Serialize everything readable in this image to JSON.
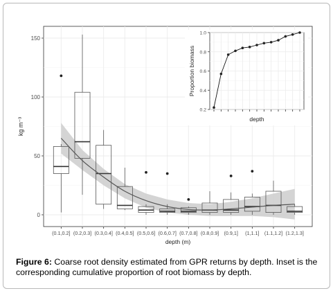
{
  "chart_data": [
    {
      "type": "box",
      "xlabel": "depth (m)",
      "ylabel": "kg m⁻³",
      "ylim": [
        -10,
        160
      ],
      "yticks": [
        0,
        50,
        100,
        150
      ],
      "grid": true,
      "categories": [
        "(0.1,0.2]",
        "(0.2,0.3]",
        "(0.3,0.4]",
        "(0.4,0.5]",
        "(0.5,0.6]",
        "(0.6,0.7]",
        "(0.7,0.8]",
        "(0.8,0.9]",
        "(0.9,1]",
        "(1,1.1]",
        "(1.1,1.2]",
        "(1.2,1.3]"
      ],
      "boxes": [
        {
          "min": 2,
          "q1": 35,
          "median": 41,
          "q3": 58,
          "max": 60,
          "outliers": [
            118
          ]
        },
        {
          "min": 17,
          "q1": 48,
          "median": 62,
          "q3": 104,
          "max": 153,
          "outliers": []
        },
        {
          "min": 5,
          "q1": 9,
          "median": 35,
          "q3": 59,
          "max": 72,
          "outliers": []
        },
        {
          "min": 4,
          "q1": 5,
          "median": 8,
          "q3": 24,
          "max": 40,
          "outliers": []
        },
        {
          "min": 0,
          "q1": 2,
          "median": 4,
          "q3": 7,
          "max": 9,
          "outliers": [
            36
          ]
        },
        {
          "min": 0,
          "q1": 2,
          "median": 3,
          "q3": 5,
          "max": 9,
          "outliers": [
            35
          ]
        },
        {
          "min": 0,
          "q1": 2,
          "median": 3,
          "q3": 6,
          "max": 7,
          "outliers": [
            13
          ]
        },
        {
          "min": 0,
          "q1": 2,
          "median": 4,
          "q3": 10,
          "max": 20,
          "outliers": []
        },
        {
          "min": 0,
          "q1": 2,
          "median": 4,
          "q3": 13,
          "max": 19,
          "outliers": [
            33
          ]
        },
        {
          "min": 0,
          "q1": 3,
          "median": 7,
          "q3": 15,
          "max": 18,
          "outliers": [
            37
          ]
        },
        {
          "min": 0,
          "q1": 2,
          "median": 8,
          "q3": 20,
          "max": 29,
          "outliers": []
        },
        {
          "min": 0,
          "q1": 2,
          "median": 3,
          "q3": 7,
          "max": 9,
          "outliers": []
        }
      ],
      "fit": {
        "x": [
          1,
          2,
          3,
          4,
          5,
          6,
          7,
          8,
          9,
          10,
          11,
          12
        ],
        "y": [
          65,
          46,
          32,
          20,
          12,
          7,
          4.5,
          4,
          5,
          6.5,
          8,
          9
        ],
        "lower": [
          52,
          38,
          25,
          14,
          6,
          2,
          0,
          -1,
          -1,
          -1,
          -2,
          -4
        ],
        "upper": [
          78,
          55,
          39,
          26,
          18,
          13,
          10,
          9,
          11,
          14,
          18,
          22
        ]
      }
    },
    {
      "type": "line",
      "inset": true,
      "xlabel": "depth",
      "ylabel": "Proportion biomass",
      "ylim": [
        0.2,
        1.0
      ],
      "yticks": [
        0.2,
        0.4,
        0.6,
        0.8,
        1.0
      ],
      "ytick_labels": [
        "0.2",
        "0.4",
        "0.6",
        "0.8",
        "1.0"
      ],
      "x": [
        1,
        2,
        3,
        4,
        5,
        6,
        7,
        8,
        9,
        10,
        11,
        12,
        13
      ],
      "y": [
        0.22,
        0.57,
        0.77,
        0.81,
        0.84,
        0.85,
        0.87,
        0.89,
        0.9,
        0.92,
        0.96,
        0.98,
        1.0
      ]
    }
  ],
  "caption": {
    "label": "Figure 6:",
    "text": " Coarse root density estimated from GPR returns by depth. Inset is the corresponding cumulative proportion of root biomass by depth."
  },
  "colors": {
    "panel_bg": "#ffffff",
    "grid": "#ebebeb",
    "ribbon": "#cccccc",
    "fit_line": "#555555",
    "box_stroke": "#555555",
    "point": "#222222"
  }
}
